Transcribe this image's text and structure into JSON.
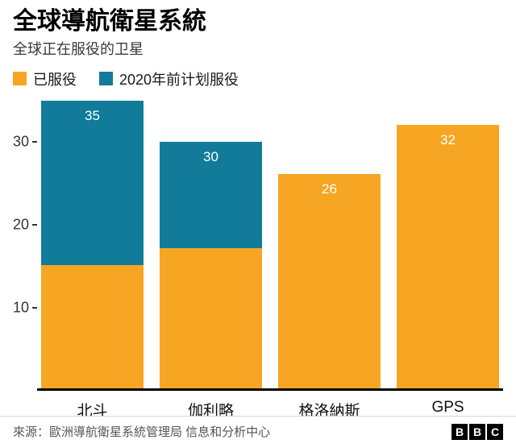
{
  "chart_data": {
    "type": "bar",
    "stacked": true,
    "title": "全球導航衛星系統",
    "subtitle": "全球正在服役的卫星",
    "categories": [
      "北斗",
      "伽利略",
      "格洛納斯",
      "GPS"
    ],
    "series": [
      {
        "name": "已服役",
        "color": "#F6A623",
        "values": [
          15,
          17,
          26,
          32
        ]
      },
      {
        "name": "2020年前计划服役",
        "color": "#117B99",
        "values": [
          20,
          13,
          0,
          0
        ]
      }
    ],
    "totals": [
      35,
      30,
      26,
      32
    ],
    "bar_labels": [
      "35",
      "30",
      "26",
      "32"
    ],
    "ylim": [
      0,
      35
    ],
    "yticks": [
      10,
      20,
      30
    ],
    "grid": false,
    "legend_position": "top"
  },
  "footer": {
    "source": "來源：歐洲導航衛星系統管理局 信息和分析中心",
    "logo": [
      "B",
      "B",
      "C"
    ]
  },
  "colors": {
    "in_service": "#F6A623",
    "planned": "#117B99",
    "axis": "#000000"
  }
}
